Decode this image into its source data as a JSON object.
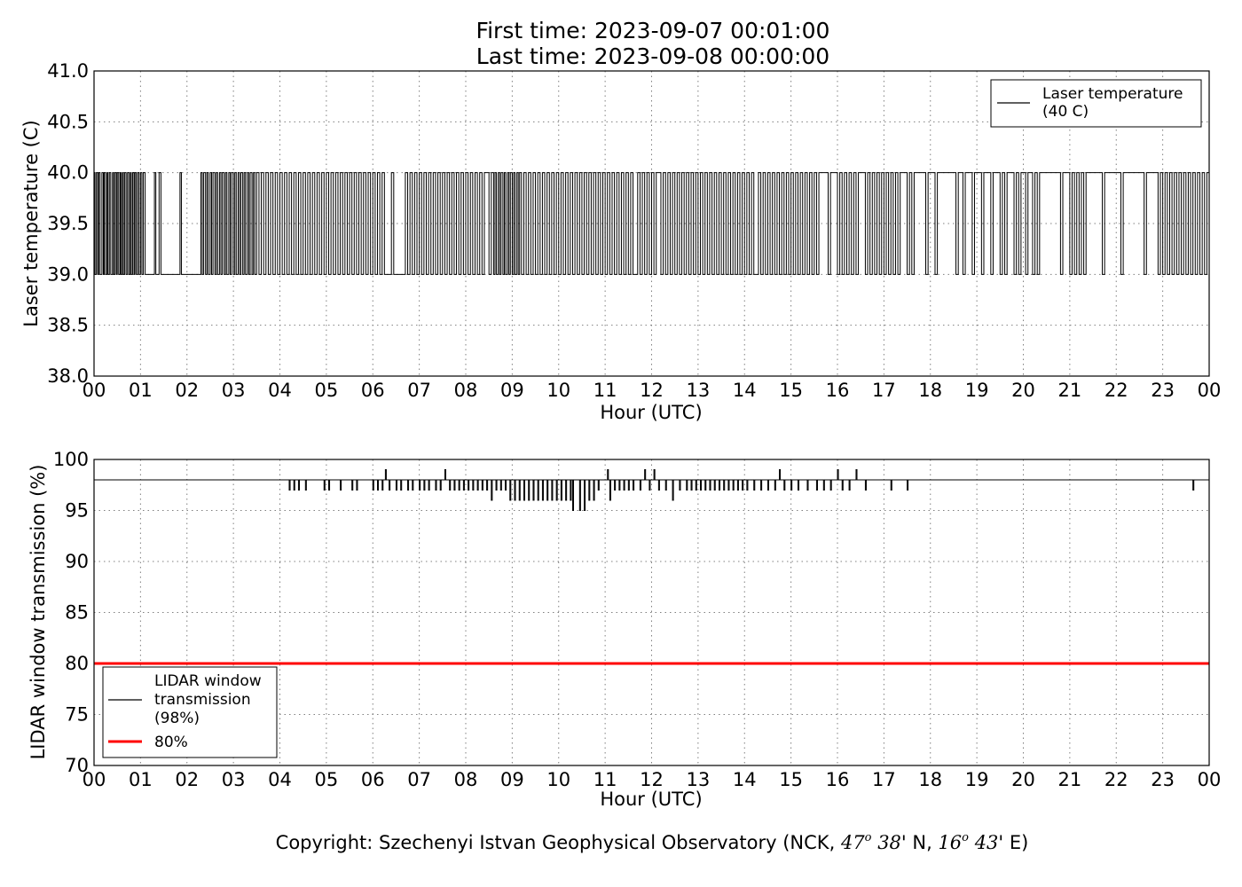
{
  "title_line1": "First time: 2023-09-07 00:01:00",
  "title_line2": "Last time: 2023-09-08 00:00:00",
  "footer": {
    "prefix": "Copyright: Szechenyi Istvan Geophysical Observatory (NCK, ",
    "lat_deg": "47",
    "deg_sup": "o",
    "lat_min": "38",
    "lat_rest": "' N, ",
    "lon_deg": "16",
    "lon_min": "43",
    "lon_rest": "' E)"
  },
  "colors": {
    "series": "#000000",
    "threshold": "#ff0000",
    "grid": "#7f7f7f"
  },
  "chart_data": [
    {
      "type": "line",
      "ylabel": "Laser temperature (C)",
      "xlabel": "Hour (UTC)",
      "ylim": [
        38.0,
        41.0
      ],
      "xlim": [
        0,
        24
      ],
      "yticks": [
        "38.0",
        "38.5",
        "39.0",
        "39.5",
        "40.0",
        "40.5",
        "41.0"
      ],
      "xticks": [
        "00",
        "01",
        "02",
        "03",
        "04",
        "05",
        "06",
        "07",
        "08",
        "09",
        "10",
        "11",
        "12",
        "13",
        "14",
        "15",
        "16",
        "17",
        "18",
        "19",
        "20",
        "21",
        "22",
        "23",
        "00"
      ],
      "grid": true,
      "legend_position": "top-right",
      "series": [
        {
          "name": "Laser temperature\n(40 C)",
          "levels": [
            39.0,
            40.0
          ],
          "toggle_hours": [
            0.02,
            0.05,
            0.08,
            0.1,
            0.13,
            0.17,
            0.2,
            0.22,
            0.25,
            0.28,
            0.3,
            0.33,
            0.36,
            0.4,
            0.42,
            0.45,
            0.48,
            0.5,
            0.53,
            0.56,
            0.58,
            0.61,
            0.63,
            0.66,
            0.69,
            0.72,
            0.75,
            0.78,
            0.8,
            0.83,
            0.86,
            0.88,
            0.91,
            0.94,
            0.97,
            1.0,
            1.03,
            1.06,
            1.1,
            1.3,
            1.33,
            1.4,
            1.44,
            1.85,
            1.88,
            2.3,
            2.33,
            2.36,
            2.4,
            2.43,
            2.46,
            2.5,
            2.53,
            2.56,
            2.6,
            2.63,
            2.66,
            2.7,
            2.73,
            2.76,
            2.8,
            2.83,
            2.86,
            2.9,
            2.93,
            2.96,
            3.0,
            3.03,
            3.06,
            3.1,
            3.13,
            3.16,
            3.2,
            3.23,
            3.26,
            3.3,
            3.33,
            3.36,
            3.4,
            3.43,
            3.46,
            3.5,
            3.55,
            3.6,
            3.65,
            3.7,
            3.75,
            3.8,
            3.85,
            3.9,
            3.95,
            4.0,
            4.05,
            4.1,
            4.15,
            4.2,
            4.25,
            4.3,
            4.35,
            4.4,
            4.45,
            4.5,
            4.55,
            4.6,
            4.65,
            4.7,
            4.75,
            4.8,
            4.85,
            4.9,
            4.95,
            5.0,
            5.05,
            5.1,
            5.15,
            5.2,
            5.25,
            5.3,
            5.35,
            5.4,
            5.45,
            5.5,
            5.55,
            5.6,
            5.65,
            5.7,
            5.75,
            5.8,
            5.85,
            5.9,
            5.95,
            6.0,
            6.05,
            6.1,
            6.15,
            6.2,
            6.25,
            6.4,
            6.45,
            6.7,
            6.75,
            6.8,
            6.85,
            6.9,
            6.95,
            7.0,
            7.05,
            7.1,
            7.15,
            7.2,
            7.25,
            7.3,
            7.35,
            7.4,
            7.45,
            7.5,
            7.55,
            7.6,
            7.65,
            7.7,
            7.75,
            7.8,
            7.85,
            7.9,
            7.95,
            8.0,
            8.05,
            8.1,
            8.15,
            8.2,
            8.25,
            8.3,
            8.35,
            8.4,
            8.5,
            8.55,
            8.6,
            8.63,
            8.66,
            8.7,
            8.73,
            8.76,
            8.8,
            8.83,
            8.86,
            8.9,
            8.93,
            8.96,
            9.0,
            9.03,
            9.06,
            9.1,
            9.13,
            9.16,
            9.2,
            9.25,
            9.3,
            9.35,
            9.4,
            9.45,
            9.5,
            9.55,
            9.6,
            9.65,
            9.7,
            9.75,
            9.8,
            9.85,
            9.9,
            9.95,
            10.0,
            10.05,
            10.1,
            10.15,
            10.2,
            10.25,
            10.3,
            10.35,
            10.4,
            10.45,
            10.5,
            10.55,
            10.6,
            10.65,
            10.7,
            10.75,
            10.8,
            10.85,
            10.9,
            10.95,
            11.0,
            11.05,
            11.1,
            11.15,
            11.2,
            11.25,
            11.3,
            11.35,
            11.4,
            11.45,
            11.5,
            11.55,
            11.6,
            11.7,
            11.75,
            11.8,
            11.85,
            11.9,
            11.95,
            12.0,
            12.05,
            12.1,
            12.2,
            12.25,
            12.3,
            12.35,
            12.4,
            12.45,
            12.5,
            12.55,
            12.6,
            12.65,
            12.7,
            12.75,
            12.8,
            12.85,
            12.9,
            12.95,
            13.0,
            13.05,
            13.1,
            13.15,
            13.2,
            13.25,
            13.3,
            13.35,
            13.4,
            13.45,
            13.5,
            13.55,
            13.6,
            13.65,
            13.7,
            13.75,
            13.8,
            13.85,
            13.9,
            13.95,
            14.0,
            14.05,
            14.1,
            14.15,
            14.2,
            14.3,
            14.35,
            14.4,
            14.45,
            14.5,
            14.55,
            14.6,
            14.65,
            14.7,
            14.75,
            14.8,
            14.85,
            14.9,
            14.95,
            15.0,
            15.05,
            15.1,
            15.15,
            15.2,
            15.25,
            15.3,
            15.35,
            15.4,
            15.45,
            15.5,
            15.55,
            15.6,
            15.8,
            15.85,
            16.0,
            16.05,
            16.1,
            16.15,
            16.2,
            16.25,
            16.3,
            16.35,
            16.4,
            16.45,
            16.6,
            16.65,
            16.7,
            16.75,
            16.8,
            16.85,
            16.9,
            16.95,
            17.0,
            17.05,
            17.1,
            17.15,
            17.2,
            17.25,
            17.3,
            17.35,
            17.5,
            17.55,
            17.6,
            17.65,
            17.9,
            17.95,
            18.1,
            18.15,
            18.55,
            18.6,
            18.7,
            18.75,
            18.9,
            18.95,
            19.1,
            19.15,
            19.3,
            19.35,
            19.5,
            19.55,
            19.6,
            19.65,
            19.8,
            19.85,
            19.9,
            19.95,
            20.05,
            20.1,
            20.2,
            20.25,
            20.3,
            20.35,
            20.8,
            20.85,
            21.0,
            21.05,
            21.1,
            21.15,
            21.2,
            21.25,
            21.3,
            21.35,
            21.7,
            21.75,
            22.1,
            22.15,
            22.6,
            22.65,
            22.9,
            22.95,
            23.0,
            23.05,
            23.1,
            23.15,
            23.2,
            23.25,
            23.3,
            23.35,
            23.4,
            23.45,
            23.5,
            23.55,
            23.6,
            23.65,
            23.7,
            23.75,
            23.8,
            23.85,
            23.9,
            23.95
          ]
        }
      ]
    },
    {
      "type": "line",
      "ylabel": "LIDAR window transmission (%)",
      "xlabel": "Hour (UTC)",
      "ylim": [
        70,
        100
      ],
      "xlim": [
        0,
        24
      ],
      "yticks": [
        "70",
        "75",
        "80",
        "85",
        "90",
        "95",
        "100"
      ],
      "xticks": [
        "00",
        "01",
        "02",
        "03",
        "04",
        "05",
        "06",
        "07",
        "08",
        "09",
        "10",
        "11",
        "12",
        "13",
        "14",
        "15",
        "16",
        "17",
        "18",
        "19",
        "20",
        "21",
        "22",
        "23",
        "00"
      ],
      "grid": true,
      "legend_position": "lower-left",
      "series": [
        {
          "name": "LIDAR window\ntransmission\n(98%)",
          "baseline": 98,
          "dips": [
            [
              4.2,
              97
            ],
            [
              4.3,
              97
            ],
            [
              4.4,
              97
            ],
            [
              4.55,
              97
            ],
            [
              4.95,
              97
            ],
            [
              5.05,
              97
            ],
            [
              5.3,
              97
            ],
            [
              5.55,
              97
            ],
            [
              5.65,
              97
            ],
            [
              6.0,
              97
            ],
            [
              6.1,
              97
            ],
            [
              6.2,
              97
            ],
            [
              6.27,
              99
            ],
            [
              6.35,
              97
            ],
            [
              6.5,
              97
            ],
            [
              6.6,
              97
            ],
            [
              6.75,
              97
            ],
            [
              6.85,
              97
            ],
            [
              7.0,
              97
            ],
            [
              7.1,
              97
            ],
            [
              7.2,
              97
            ],
            [
              7.35,
              97
            ],
            [
              7.45,
              97
            ],
            [
              7.55,
              99
            ],
            [
              7.65,
              97
            ],
            [
              7.75,
              97
            ],
            [
              7.85,
              97
            ],
            [
              7.95,
              97
            ],
            [
              8.05,
              97
            ],
            [
              8.15,
              97
            ],
            [
              8.25,
              97
            ],
            [
              8.35,
              97
            ],
            [
              8.45,
              97
            ],
            [
              8.55,
              96
            ],
            [
              8.65,
              97
            ],
            [
              8.75,
              97
            ],
            [
              8.85,
              97
            ],
            [
              8.95,
              96
            ],
            [
              9.05,
              96
            ],
            [
              9.15,
              96
            ],
            [
              9.25,
              96
            ],
            [
              9.35,
              96
            ],
            [
              9.45,
              96
            ],
            [
              9.55,
              96
            ],
            [
              9.65,
              96
            ],
            [
              9.75,
              96
            ],
            [
              9.85,
              96
            ],
            [
              9.95,
              96
            ],
            [
              10.05,
              96
            ],
            [
              10.15,
              96
            ],
            [
              10.25,
              96
            ],
            [
              10.3,
              95
            ],
            [
              10.45,
              95
            ],
            [
              10.55,
              95
            ],
            [
              10.65,
              96
            ],
            [
              10.75,
              96
            ],
            [
              10.85,
              97
            ],
            [
              11.05,
              99
            ],
            [
              11.1,
              96
            ],
            [
              11.2,
              97
            ],
            [
              11.3,
              97
            ],
            [
              11.4,
              97
            ],
            [
              11.5,
              97
            ],
            [
              11.6,
              97
            ],
            [
              11.75,
              97
            ],
            [
              11.85,
              99
            ],
            [
              11.95,
              97
            ],
            [
              12.05,
              99
            ],
            [
              12.15,
              97
            ],
            [
              12.3,
              97
            ],
            [
              12.45,
              96
            ],
            [
              12.6,
              97
            ],
            [
              12.75,
              97
            ],
            [
              12.85,
              97
            ],
            [
              12.95,
              97
            ],
            [
              13.05,
              97
            ],
            [
              13.15,
              97
            ],
            [
              13.25,
              97
            ],
            [
              13.35,
              97
            ],
            [
              13.45,
              97
            ],
            [
              13.55,
              97
            ],
            [
              13.65,
              97
            ],
            [
              13.75,
              97
            ],
            [
              13.85,
              97
            ],
            [
              13.95,
              97
            ],
            [
              14.05,
              97
            ],
            [
              14.2,
              97
            ],
            [
              14.35,
              97
            ],
            [
              14.5,
              97
            ],
            [
              14.65,
              97
            ],
            [
              14.75,
              99
            ],
            [
              14.85,
              97
            ],
            [
              15.0,
              97
            ],
            [
              15.15,
              97
            ],
            [
              15.35,
              97
            ],
            [
              15.55,
              97
            ],
            [
              15.7,
              97
            ],
            [
              15.85,
              97
            ],
            [
              16.0,
              99
            ],
            [
              16.1,
              97
            ],
            [
              16.25,
              97
            ],
            [
              16.4,
              99
            ],
            [
              16.6,
              97
            ],
            [
              17.15,
              97
            ],
            [
              17.5,
              97
            ],
            [
              23.65,
              97
            ]
          ]
        },
        {
          "name": "80%",
          "constant": 80
        }
      ]
    }
  ]
}
